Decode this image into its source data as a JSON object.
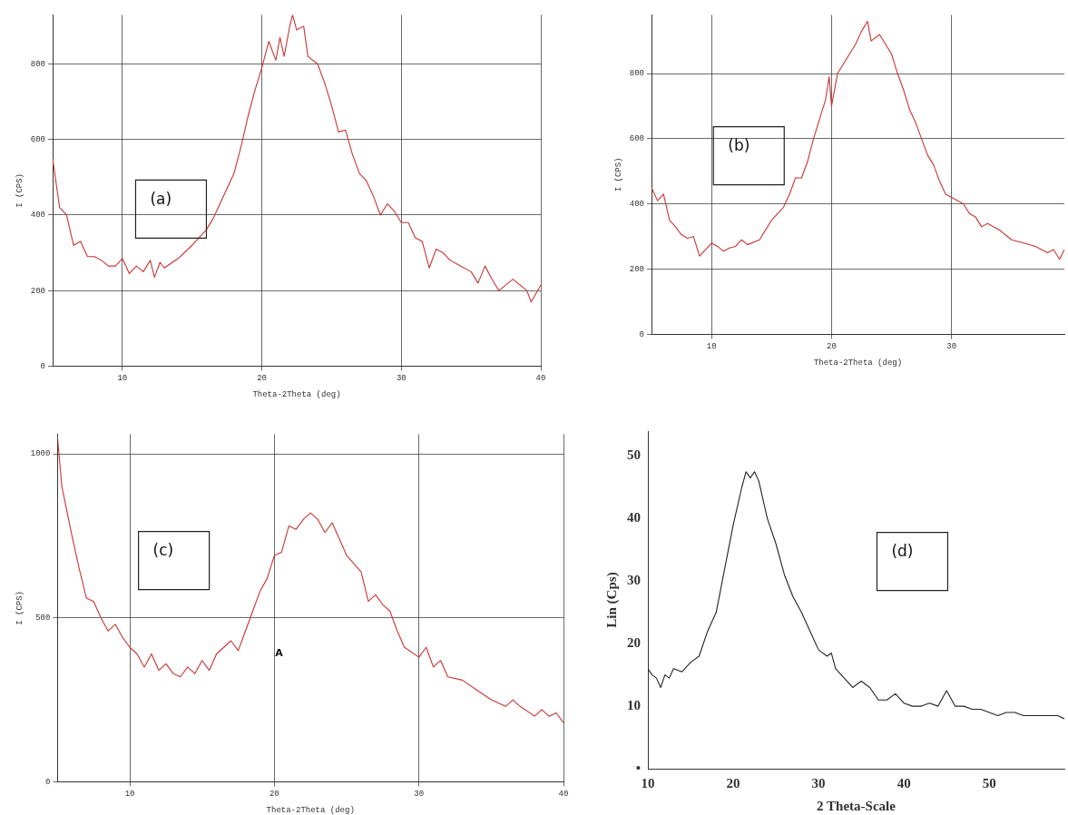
{
  "chart_data": [
    {
      "type": "line",
      "xlabel": "Theta-2Theta (deg)",
      "ylabel": "I (CPS)",
      "xlim": [
        5,
        40
      ],
      "ylim": [
        0,
        930
      ],
      "xticks": [
        10,
        20,
        30,
        40
      ],
      "yticks": [
        0,
        200,
        400,
        600,
        800
      ],
      "grid": true,
      "marker": "none",
      "annotations": [
        "(a)"
      ],
      "series": [
        {
          "color": "#cc3333",
          "x": [
            5,
            5.5,
            6,
            6.5,
            7,
            7.5,
            8,
            8.5,
            9,
            9.5,
            10,
            10.5,
            11,
            11.5,
            12,
            12.3,
            12.7,
            13,
            14,
            15,
            16,
            16.5,
            17,
            17.5,
            18,
            18.5,
            19,
            19.5,
            20,
            20.5,
            21,
            21.3,
            21.6,
            22,
            22.2,
            22.5,
            23,
            23.3,
            24,
            24.5,
            25,
            25.5,
            26,
            26.5,
            27,
            27.5,
            28,
            28.5,
            29,
            29.5,
            30,
            30.5,
            31,
            31.5,
            32,
            32.5,
            33,
            33.5,
            34,
            35,
            35.5,
            36,
            36.5,
            37,
            37.5,
            38,
            38.5,
            39,
            39.3,
            39.7,
            40
          ],
          "values": [
            550,
            420,
            400,
            320,
            330,
            290,
            290,
            280,
            265,
            265,
            285,
            245,
            265,
            250,
            280,
            235,
            275,
            260,
            285,
            320,
            360,
            390,
            430,
            470,
            510,
            580,
            660,
            730,
            790,
            860,
            810,
            870,
            820,
            900,
            930,
            890,
            900,
            820,
            800,
            750,
            690,
            620,
            625,
            560,
            510,
            490,
            450,
            400,
            430,
            410,
            380,
            380,
            340,
            330,
            260,
            310,
            300,
            280,
            270,
            250,
            220,
            265,
            230,
            200,
            215,
            230,
            215,
            200,
            170,
            195,
            215
          ]
        }
      ]
    },
    {
      "type": "line",
      "xlabel": "Theta-2Theta (deg)",
      "ylabel": "I (CPS)",
      "xlim": [
        5,
        39.4
      ],
      "ylim": [
        0,
        980
      ],
      "xticks": [
        10,
        20,
        30
      ],
      "yticks": [
        0,
        200,
        400,
        600,
        800
      ],
      "grid": true,
      "marker": "none",
      "annotations": [
        "(b)"
      ],
      "series": [
        {
          "color": "#cc3333",
          "x": [
            5,
            5.5,
            6,
            6.5,
            7,
            7.5,
            8,
            8.5,
            9,
            9.5,
            10,
            10.5,
            11,
            11.5,
            12,
            12.5,
            13,
            14,
            15,
            16,
            16.5,
            17,
            17.5,
            18,
            18.5,
            19,
            19.5,
            19.8,
            20,
            20.5,
            21,
            22,
            22.5,
            23,
            23.3,
            24,
            25,
            25.5,
            26,
            26.5,
            27,
            27.5,
            28,
            28.5,
            29,
            29.5,
            30,
            31,
            31.5,
            32,
            32.5,
            33,
            34,
            35,
            36,
            37,
            38,
            38.5,
            39,
            39.4
          ],
          "values": [
            450,
            410,
            430,
            350,
            330,
            305,
            295,
            300,
            240,
            260,
            280,
            270,
            255,
            265,
            270,
            290,
            275,
            290,
            350,
            390,
            430,
            480,
            480,
            530,
            600,
            660,
            720,
            790,
            700,
            800,
            830,
            890,
            930,
            960,
            900,
            920,
            860,
            800,
            750,
            690,
            650,
            600,
            550,
            520,
            470,
            430,
            420,
            400,
            370,
            360,
            330,
            340,
            320,
            290,
            280,
            270,
            250,
            260,
            230,
            260
          ]
        }
      ]
    },
    {
      "type": "line",
      "xlabel": "Theta-2Theta (deg)",
      "ylabel": "I (CPS)",
      "xlim": [
        5,
        40
      ],
      "ylim": [
        0,
        1060
      ],
      "xticks": [
        10,
        20,
        30,
        40
      ],
      "yticks": [
        0,
        500,
        1000
      ],
      "grid": true,
      "marker": "none",
      "annotations": [
        "(c)",
        "A"
      ],
      "series": [
        {
          "color": "#cc3333",
          "x": [
            5,
            5.3,
            6,
            6.5,
            7,
            7.5,
            8,
            8.5,
            9,
            9.5,
            10,
            10.5,
            11,
            11.5,
            12,
            12.5,
            13,
            13.5,
            14,
            14.5,
            15,
            15.5,
            16,
            17,
            17.5,
            18,
            18.5,
            19,
            19.5,
            20,
            20.5,
            21,
            21.5,
            22,
            22.5,
            23,
            23.5,
            24,
            24.5,
            25,
            26,
            26.5,
            27,
            27.5,
            28,
            28.5,
            29,
            30,
            30.5,
            31,
            31.5,
            32,
            33,
            34,
            35,
            36,
            36.5,
            37,
            38,
            38.5,
            39,
            39.5,
            40
          ],
          "values": [
            1050,
            900,
            750,
            650,
            560,
            550,
            500,
            460,
            480,
            440,
            410,
            390,
            350,
            390,
            340,
            360,
            330,
            320,
            350,
            330,
            370,
            340,
            390,
            430,
            400,
            460,
            520,
            580,
            620,
            690,
            700,
            780,
            770,
            800,
            820,
            800,
            760,
            790,
            740,
            690,
            640,
            550,
            570,
            540,
            520,
            460,
            410,
            380,
            410,
            350,
            370,
            320,
            310,
            280,
            250,
            230,
            250,
            230,
            200,
            220,
            200,
            210,
            180
          ]
        }
      ]
    },
    {
      "type": "line",
      "xlabel": "2 Theta-Scale",
      "ylabel": "Lin (Cps)",
      "xlim": [
        10,
        58.8
      ],
      "ylim": [
        0,
        54
      ],
      "xticks": [
        10,
        20,
        30,
        40,
        50
      ],
      "yticks": [
        {
          "value": 0,
          "label": "•"
        },
        10,
        20,
        30,
        40,
        50
      ],
      "marker": "none",
      "annotations": [
        "(d)"
      ],
      "series": [
        {
          "color": "#222222",
          "x": [
            10,
            10.5,
            11,
            11.5,
            12,
            12.5,
            13,
            14,
            15,
            16,
            17,
            18,
            19,
            20,
            21,
            21.5,
            22,
            22.5,
            23,
            23.5,
            24,
            25,
            26,
            27,
            28,
            29,
            30,
            31,
            31.5,
            32,
            33,
            34,
            35,
            36,
            37,
            38,
            39,
            40,
            41,
            42,
            43,
            44,
            45,
            46,
            47,
            48,
            49,
            50,
            51,
            52,
            53,
            54,
            55,
            56,
            57,
            58,
            58.8
          ],
          "values": [
            16,
            15,
            14.5,
            13,
            15,
            14.5,
            16,
            15.5,
            17,
            18,
            22,
            25,
            32,
            39,
            45,
            47.5,
            46.5,
            47.5,
            46,
            43,
            40,
            36,
            31,
            27.5,
            25,
            22,
            19,
            18,
            18.5,
            16,
            14.5,
            13,
            14,
            13,
            11,
            11,
            12,
            10.5,
            10,
            10,
            10.5,
            10,
            12.5,
            10,
            10,
            9.5,
            9.5,
            9,
            8.5,
            9,
            9,
            8.5,
            8.5,
            8.5,
            8.5,
            8.5,
            8
          ]
        }
      ]
    }
  ]
}
